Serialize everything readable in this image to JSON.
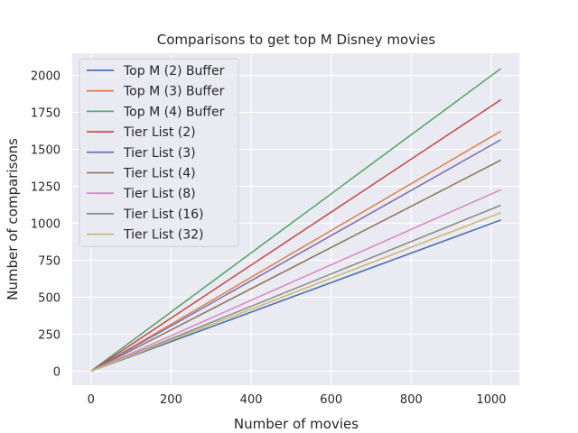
{
  "chart_data": {
    "type": "line",
    "title": "Comparisons to get top M Disney movies",
    "xlabel": "Number of movies",
    "ylabel": "Number of comparisons",
    "xlim": [
      -47,
      1070
    ],
    "ylim": [
      -95,
      2150
    ],
    "xticks": [
      0,
      200,
      400,
      600,
      800,
      1000
    ],
    "yticks": [
      0,
      250,
      500,
      750,
      1000,
      1250,
      1500,
      1750,
      2000
    ],
    "grid": true,
    "legend_position": "top-left",
    "series": [
      {
        "name": "Top M (2) Buffer",
        "color": "#4c72b0",
        "x": [
          0,
          1024
        ],
        "y": [
          0,
          1022
        ]
      },
      {
        "name": "Top M (3) Buffer",
        "color": "#dd8452",
        "x": [
          0,
          1024
        ],
        "y": [
          0,
          1623
        ]
      },
      {
        "name": "Top M (4) Buffer",
        "color": "#55a868",
        "x": [
          0,
          1024
        ],
        "y": [
          0,
          2046
        ]
      },
      {
        "name": "Tier List (2)",
        "color": "#c44e52",
        "x": [
          0,
          1024
        ],
        "y": [
          0,
          1835
        ]
      },
      {
        "name": "Tier List (3)",
        "color": "#8172b3",
        "x": [
          0,
          1024
        ],
        "y": [
          0,
          1565
        ]
      },
      {
        "name": "Tier List (4)",
        "color": "#937860",
        "x": [
          0,
          1024
        ],
        "y": [
          0,
          1427
        ]
      },
      {
        "name": "Tier List (8)",
        "color": "#da8bc3",
        "x": [
          0,
          1024
        ],
        "y": [
          0,
          1227
        ]
      },
      {
        "name": "Tier List (16)",
        "color": "#8c8c8c",
        "x": [
          0,
          1024
        ],
        "y": [
          0,
          1122
        ]
      },
      {
        "name": "Tier List (32)",
        "color": "#ccb974",
        "x": [
          0,
          1024
        ],
        "y": [
          0,
          1072
        ]
      }
    ]
  }
}
